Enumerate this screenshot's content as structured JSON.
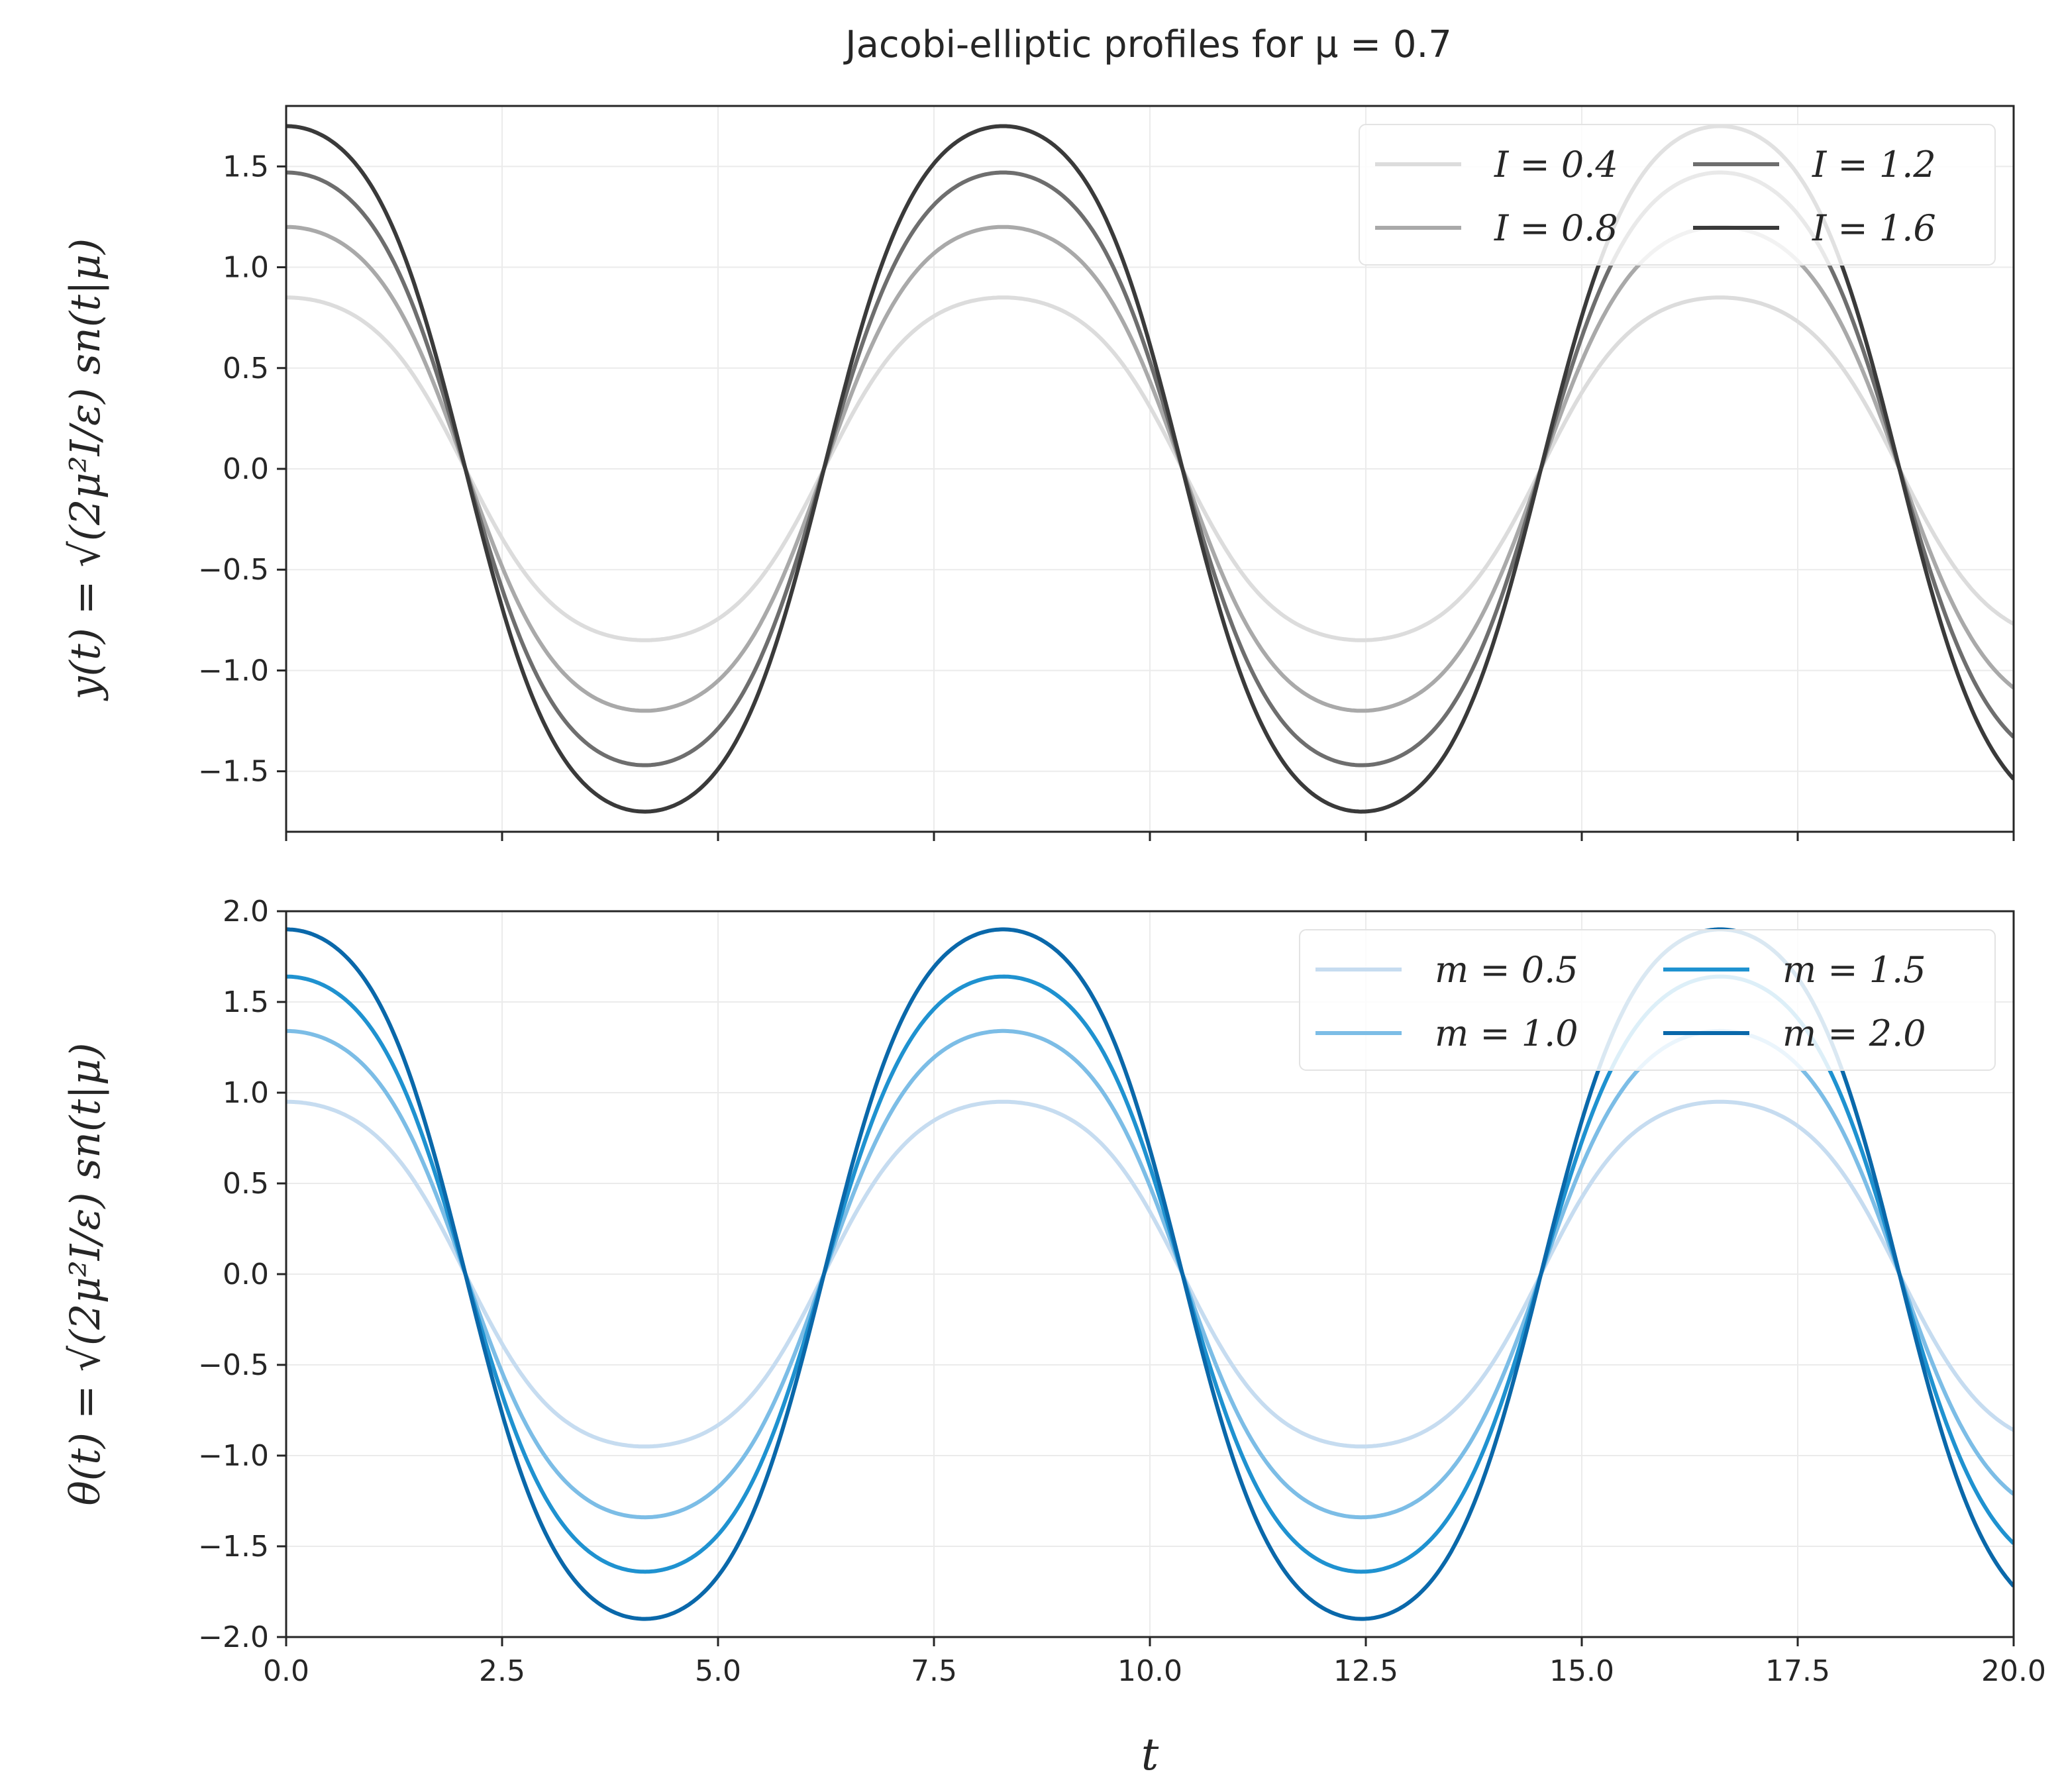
{
  "title": "Jacobi-elliptic profiles for μ = 0.7",
  "chart_data": [
    {
      "type": "line",
      "title": "Jacobi-elliptic profiles for μ = 0.7",
      "xlabel": "",
      "ylabel": "y(t) = √(2μ²I/ε) sn(t|μ)",
      "xlim": [
        0,
        20
      ],
      "ylim": [
        -1.8,
        1.8
      ],
      "xticks": [
        0,
        2.5,
        5,
        7.5,
        10,
        12.5,
        15,
        17.5,
        20
      ],
      "yticks": [
        -1.5,
        -1.0,
        -0.5,
        0.0,
        0.5,
        1.0,
        1.5
      ],
      "ytick_labels": [
        "−1.5",
        "−1.0",
        "−0.5",
        "0.0",
        "0.5",
        "1.0",
        "1.5"
      ],
      "grid": true,
      "legend_position": "top-right",
      "legend_columns": 2,
      "mu": 0.7,
      "series": [
        {
          "name": "I = 0.4",
          "amplitude": 0.85,
          "color": "#dcdcdc"
        },
        {
          "name": "I = 0.8",
          "amplitude": 1.2,
          "color": "#a9a9a9"
        },
        {
          "name": "I = 1.2",
          "amplitude": 1.47,
          "color": "#6e6e6e"
        },
        {
          "name": "I = 1.6",
          "amplitude": 1.7,
          "color": "#3a3a3a"
        }
      ]
    },
    {
      "type": "line",
      "xlabel": "t",
      "ylabel": "θ(t) = √(2μ²I/ε) sn(t|μ)",
      "xlim": [
        0,
        20
      ],
      "ylim": [
        -2.0,
        2.0
      ],
      "xticks": [
        0,
        2.5,
        5,
        7.5,
        10,
        12.5,
        15,
        17.5,
        20
      ],
      "xtick_labels": [
        "0.0",
        "2.5",
        "5.0",
        "7.5",
        "10.0",
        "12.5",
        "15.0",
        "17.5",
        "20.0"
      ],
      "yticks": [
        -2.0,
        -1.5,
        -1.0,
        -0.5,
        0.0,
        0.5,
        1.0,
        1.5,
        2.0
      ],
      "ytick_labels": [
        "−2.0",
        "−1.5",
        "−1.0",
        "−0.5",
        "0.0",
        "0.5",
        "1.0",
        "1.5",
        "2.0"
      ],
      "grid": true,
      "legend_position": "top-right",
      "legend_columns": 2,
      "mu": 0.7,
      "series": [
        {
          "name": "m = 0.5",
          "amplitude": 0.95,
          "color": "#c6dcf0"
        },
        {
          "name": "m = 1.0",
          "amplitude": 1.34,
          "color": "#7cbde6"
        },
        {
          "name": "m = 1.5",
          "amplitude": 1.64,
          "color": "#1f92d0"
        },
        {
          "name": "m = 2.0",
          "amplitude": 1.9,
          "color": "#0a68aa"
        }
      ]
    }
  ]
}
